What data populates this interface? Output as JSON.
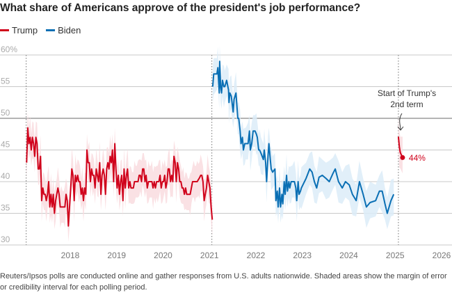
{
  "chart_data": {
    "type": "line",
    "title": "What share of Americans approve of the president's job performance?",
    "xlabel": "",
    "ylabel": "",
    "ylim": [
      30,
      60
    ],
    "xlim": [
      2016.9,
      2026.2
    ],
    "y_ticks": [
      "60%",
      "55",
      "50",
      "45",
      "40",
      "35",
      "30"
    ],
    "y_tick_values": [
      60,
      55,
      50,
      45,
      40,
      35,
      30
    ],
    "x_ticks": [
      "2018",
      "2019",
      "2020",
      "2021",
      "2022",
      "2023",
      "2024",
      "2025",
      "2026"
    ],
    "x_tick_values": [
      2018,
      2019,
      2020,
      2021,
      2022,
      2023,
      2024,
      2025,
      2026
    ],
    "grid": true,
    "legend_position": "top-left",
    "term_starts": [
      2017.05,
      2021.05,
      2025.07
    ],
    "colors": {
      "trump": "#d0021b",
      "biden": "#0a6fb4",
      "trump_band": "#f9dcdf",
      "biden_band": "#dcecf8",
      "grid": "#c8c8c8",
      "grid_50": "#888888"
    },
    "series": [
      {
        "name": "Trump",
        "color": "#d0021b",
        "start": 2017.06,
        "step": 0.025,
        "margin": 2.5,
        "values": [
          43,
          48.5,
          46,
          47,
          45,
          47,
          46,
          44,
          47,
          46,
          42,
          42,
          44,
          37,
          39,
          38,
          38,
          37,
          38,
          40,
          36,
          38,
          36,
          38,
          35,
          37,
          38,
          39,
          38,
          36,
          36,
          36,
          36,
          36,
          38,
          37,
          33,
          36,
          39,
          42,
          41,
          37,
          41,
          40,
          41,
          40,
          40,
          38,
          39,
          37,
          39,
          38,
          45,
          43,
          43,
          40,
          42,
          41,
          41,
          39,
          42,
          41,
          40,
          43,
          38,
          41,
          42,
          41,
          38,
          42,
          43,
          42,
          44,
          43,
          45,
          40,
          46,
          42,
          39,
          41,
          38,
          40,
          41,
          37,
          42,
          39,
          41,
          42,
          39,
          40,
          39,
          39,
          39,
          40,
          40,
          40,
          40,
          41,
          41,
          40,
          42,
          42,
          40,
          41,
          39,
          40,
          40,
          40,
          40,
          39,
          40,
          39,
          40,
          40,
          40,
          41,
          39,
          40,
          40,
          41,
          39,
          40,
          42,
          42,
          40,
          41,
          40,
          44,
          43,
          40,
          43,
          42,
          40,
          40,
          39,
          39,
          38,
          39,
          38,
          38,
          38,
          38,
          39,
          40,
          40,
          40,
          40,
          40,
          40.3,
          40.6,
          41,
          41,
          40,
          37,
          38,
          39,
          41,
          40,
          39,
          36,
          34
        ]
      },
      {
        "name": "Biden",
        "color": "#0a6fb4",
        "margin": 2.5,
        "points": [
          [
            2021.07,
            55
          ],
          [
            2021.09,
            57
          ],
          [
            2021.16,
            57
          ],
          [
            2021.18,
            58
          ],
          [
            2021.21,
            54
          ],
          [
            2021.22,
            59
          ],
          [
            2021.24,
            55
          ],
          [
            2021.26,
            54
          ],
          [
            2021.28,
            56
          ],
          [
            2021.31,
            55
          ],
          [
            2021.33,
            55
          ],
          [
            2021.37,
            56
          ],
          [
            2021.41,
            54.5
          ],
          [
            2021.42,
            52.5
          ],
          [
            2021.44,
            54
          ],
          [
            2021.47,
            53.5
          ],
          [
            2021.51,
            51
          ],
          [
            2021.53,
            53
          ],
          [
            2021.57,
            54
          ],
          [
            2021.61,
            50
          ],
          [
            2021.63,
            50
          ],
          [
            2021.66,
            48
          ],
          [
            2021.68,
            46
          ],
          [
            2021.71,
            47
          ],
          [
            2021.73,
            45
          ],
          [
            2021.76,
            46
          ],
          [
            2021.78,
            46
          ],
          [
            2021.83,
            46
          ],
          [
            2021.86,
            48
          ],
          [
            2021.88,
            45
          ],
          [
            2021.91,
            46
          ],
          [
            2021.94,
            48
          ],
          [
            2021.98,
            48
          ],
          [
            2022.01,
            47.5
          ],
          [
            2022.03,
            47
          ],
          [
            2022.06,
            45
          ],
          [
            2022.08,
            45
          ],
          [
            2022.11,
            44.5
          ],
          [
            2022.16,
            43.5
          ],
          [
            2022.18,
            45
          ],
          [
            2022.21,
            43
          ],
          [
            2022.23,
            40
          ],
          [
            2022.26,
            44
          ],
          [
            2022.28,
            46
          ],
          [
            2022.31,
            43.5
          ],
          [
            2022.33,
            42
          ],
          [
            2022.36,
            41.5
          ],
          [
            2022.41,
            42
          ],
          [
            2022.43,
            37
          ],
          [
            2022.46,
            38.5
          ],
          [
            2022.48,
            36
          ],
          [
            2022.51,
            39
          ],
          [
            2022.53,
            36
          ],
          [
            2022.56,
            38
          ],
          [
            2022.58,
            36.5
          ],
          [
            2022.61,
            40
          ],
          [
            2022.63,
            38
          ],
          [
            2022.66,
            41
          ],
          [
            2022.68,
            38.5
          ],
          [
            2022.71,
            40
          ],
          [
            2022.73,
            39
          ],
          [
            2022.76,
            40
          ],
          [
            2022.78,
            40
          ],
          [
            2022.83,
            40
          ],
          [
            2022.86,
            39
          ],
          [
            2022.88,
            37
          ],
          [
            2022.91,
            40
          ],
          [
            2022.93,
            38
          ],
          [
            2022.96,
            38.5
          ],
          [
            2022.98,
            39
          ],
          [
            2023.08,
            40.5
          ],
          [
            2023.16,
            42
          ],
          [
            2023.21,
            41.5
          ],
          [
            2023.26,
            40
          ],
          [
            2023.31,
            39
          ],
          [
            2023.36,
            40.7
          ],
          [
            2023.43,
            41
          ],
          [
            2023.51,
            40.5
          ],
          [
            2023.58,
            40
          ],
          [
            2023.66,
            41.3
          ],
          [
            2023.71,
            42
          ],
          [
            2023.78,
            40
          ],
          [
            2023.86,
            39
          ],
          [
            2023.93,
            40
          ],
          [
            2024.01,
            39.5
          ],
          [
            2024.08,
            38
          ],
          [
            2024.16,
            37
          ],
          [
            2024.23,
            40
          ],
          [
            2024.31,
            38
          ],
          [
            2024.38,
            36
          ],
          [
            2024.46,
            36.7
          ],
          [
            2024.58,
            37
          ],
          [
            2024.66,
            38.5
          ],
          [
            2024.72,
            38.5
          ],
          [
            2024.78,
            36.5
          ],
          [
            2024.83,
            35
          ],
          [
            2024.91,
            37
          ],
          [
            2024.97,
            38
          ]
        ]
      },
      {
        "name": "Trump (2nd term)",
        "color": "#d0021b",
        "margin": 2.5,
        "points": [
          [
            2025.07,
            47.1
          ],
          [
            2025.09,
            45.5
          ],
          [
            2025.11,
            44.6
          ],
          [
            2025.16,
            43.8
          ]
        ]
      }
    ],
    "legend": [
      "Trump",
      "Biden"
    ],
    "annotation": {
      "line1": "Start of Trump's",
      "line2": "2nd term"
    },
    "end_label": "44%"
  },
  "caption": "Reuters/Ipsos polls are conducted online and gather responses from U.S. adults nationwide. Shaded areas show the margin of error or credibility interval for each polling period."
}
